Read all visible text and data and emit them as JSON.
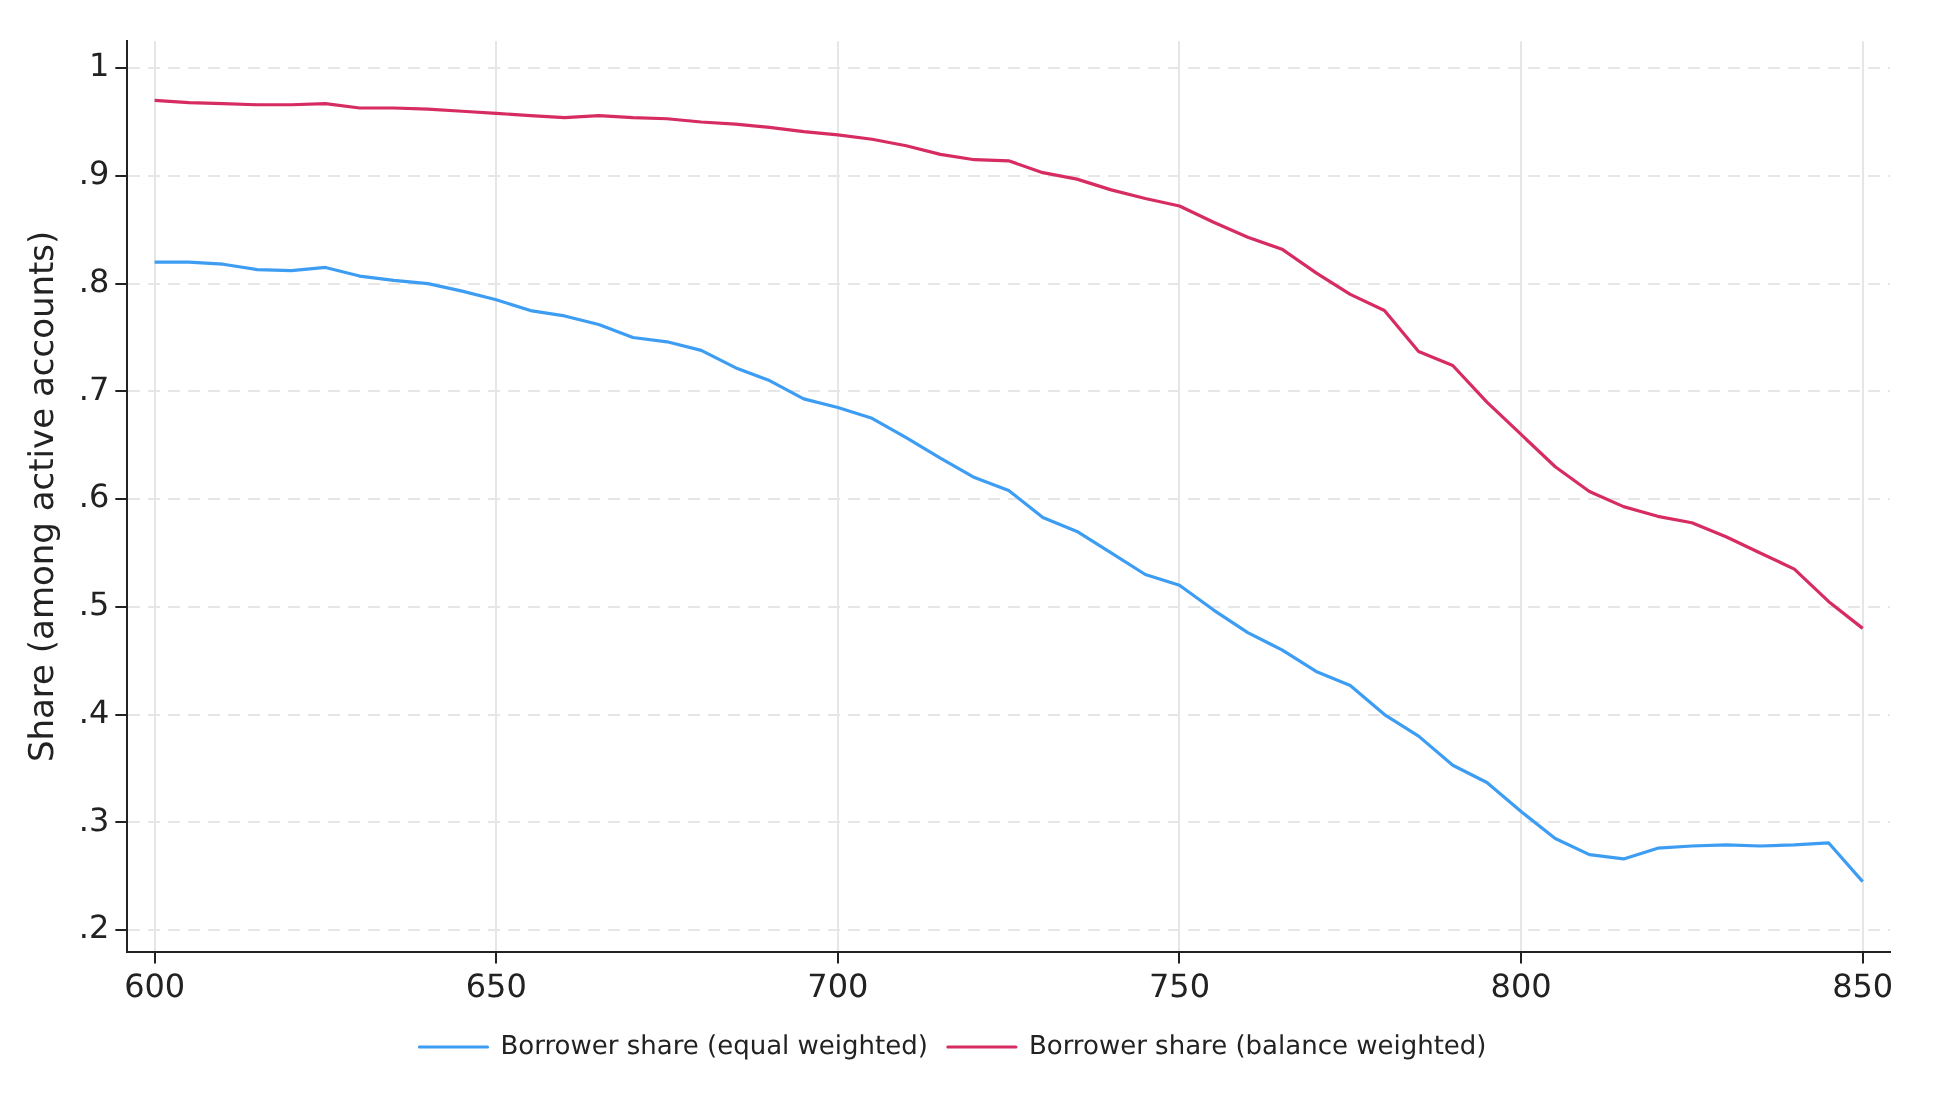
{
  "chart_data": {
    "type": "line",
    "ylabel": "Share (among active accounts)",
    "x": [
      600,
      605,
      610,
      615,
      620,
      625,
      630,
      635,
      640,
      645,
      650,
      655,
      660,
      665,
      670,
      675,
      680,
      685,
      690,
      695,
      700,
      705,
      710,
      715,
      720,
      725,
      730,
      735,
      740,
      745,
      750,
      755,
      760,
      765,
      770,
      775,
      780,
      785,
      790,
      795,
      800,
      805,
      810,
      815,
      820,
      825,
      830,
      835,
      840,
      845,
      850
    ],
    "series": [
      {
        "name": "Borrower share (equal weighted)",
        "color": "#3d9df3",
        "values": [
          0.82,
          0.82,
          0.818,
          0.813,
          0.812,
          0.815,
          0.807,
          0.803,
          0.8,
          0.793,
          0.785,
          0.775,
          0.77,
          0.762,
          0.75,
          0.746,
          0.738,
          0.722,
          0.71,
          0.693,
          0.685,
          0.675,
          0.657,
          0.638,
          0.62,
          0.608,
          0.583,
          0.57,
          0.55,
          0.53,
          0.52,
          0.497,
          0.476,
          0.46,
          0.44,
          0.427,
          0.4,
          0.38,
          0.353,
          0.337,
          0.31,
          0.285,
          0.27,
          0.266,
          0.276,
          0.278,
          0.279,
          0.278,
          0.279,
          0.281,
          0.245
        ]
      },
      {
        "name": "Borrower share (balance weighted)",
        "color": "#d62c62",
        "values": [
          0.97,
          0.968,
          0.967,
          0.966,
          0.966,
          0.967,
          0.963,
          0.963,
          0.962,
          0.96,
          0.958,
          0.956,
          0.954,
          0.956,
          0.954,
          0.953,
          0.95,
          0.948,
          0.945,
          0.941,
          0.938,
          0.934,
          0.928,
          0.92,
          0.915,
          0.914,
          0.903,
          0.897,
          0.887,
          0.879,
          0.872,
          0.857,
          0.843,
          0.832,
          0.81,
          0.79,
          0.775,
          0.737,
          0.724,
          0.69,
          0.66,
          0.63,
          0.607,
          0.593,
          0.584,
          0.578,
          0.565,
          0.55,
          0.535,
          0.505,
          0.48
        ]
      }
    ],
    "xlim": [
      596,
      854
    ],
    "xticks": [
      600,
      650,
      700,
      750,
      800,
      850
    ],
    "ylim": [
      0.18,
      1.025
    ],
    "yticks": [
      {
        "value": 0.2,
        "label": ".2"
      },
      {
        "value": 0.3,
        "label": ".3"
      },
      {
        "value": 0.4,
        "label": ".4"
      },
      {
        "value": 0.5,
        "label": ".5"
      },
      {
        "value": 0.6,
        "label": ".6"
      },
      {
        "value": 0.7,
        "label": ".7"
      },
      {
        "value": 0.8,
        "label": ".8"
      },
      {
        "value": 0.9,
        "label": ".9"
      },
      {
        "value": 1,
        "label": "1"
      }
    ],
    "grid": true,
    "legend": "bottom",
    "marker": "none",
    "line_style": "solid"
  }
}
